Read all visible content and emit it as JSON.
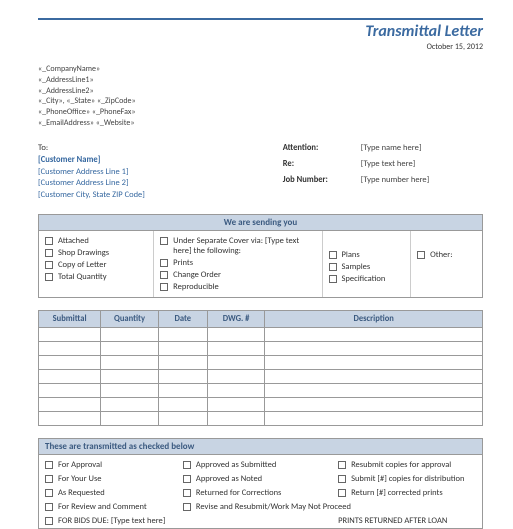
{
  "header": {
    "title": "Transmittal Letter",
    "date": "October 15, 2012"
  },
  "company": {
    "name": "«_CompanyName»",
    "addr1": "«_AddressLine1»",
    "addr2": "«_AddressLine2»",
    "csz": "«_City», «_State»  «_ZipCode»",
    "phones": "«_PhoneOffice» «_PhoneFax»",
    "email": "«_EmailAddress» «_Website»"
  },
  "to": {
    "label": "To:",
    "name": "[Customer Name]",
    "l1": "[Customer Address Line 1]",
    "l2": "[Customer Address Line 2]",
    "csz": "[Customer City, State ZIP Code]"
  },
  "attn": {
    "attention_lab": "Attention:",
    "attention_val": "[Type name here]",
    "re_lab": "Re:",
    "re_val": "[Type text here]",
    "job_lab": "Job Number:",
    "job_val": "[Type number here]"
  },
  "sending": {
    "title": "We are sending you",
    "col1": [
      "Attached",
      "Shop Drawings",
      "Copy of Letter",
      "Total Quantity"
    ],
    "col2_head": "Under Separate  Cover via:  [Type text here]  the following:",
    "col2": [
      "Prints",
      "Change Order",
      "Reproducible"
    ],
    "col3": [
      "Plans",
      "Samples",
      "Specification"
    ],
    "col4": [
      "Other:"
    ]
  },
  "subtable": {
    "headers": [
      "Submittal",
      "Quantity",
      "Date",
      "DWG. #",
      "Description"
    ],
    "rows": 7
  },
  "transmitted": {
    "title": "These are transmitted as checked below",
    "col1": [
      "For Approval",
      "For Your Use",
      "As Requested",
      "For Review and Comment",
      "FOR BIDS  DUE:  [Type text here]"
    ],
    "col2": [
      "Approved as Submitted",
      "Approved as Noted",
      "Returned for Corrections",
      "Revise and Resubmit/Work May Not Proceed",
      ""
    ],
    "col3": [
      "Resubmit copies for approval",
      "Submit [#] copies for distribution",
      "Return [#] corrected  prints",
      "",
      "PRINTS RETURNED AFTER  LOAN"
    ]
  },
  "colors": {
    "accent": "#3b6aa0",
    "header_bg": "#c8d4e3"
  }
}
